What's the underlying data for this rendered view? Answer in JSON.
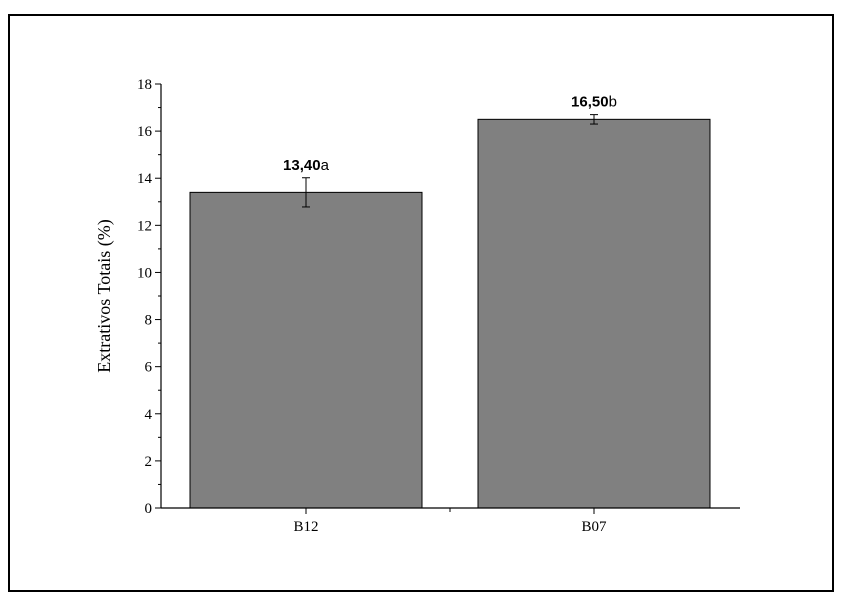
{
  "chart_data": {
    "type": "bar",
    "title": "",
    "xlabel": "",
    "ylabel": "Extrativos Totais (%)",
    "categories": [
      "B12",
      "B07"
    ],
    "values": [
      13.4,
      16.5
    ],
    "errors": [
      0.62,
      0.2
    ],
    "annotations": [
      {
        "value": "13,40",
        "letter": "a"
      },
      {
        "value": "16,50",
        "letter": "b"
      }
    ],
    "ylim": [
      0,
      18
    ],
    "yticks": [
      0,
      2,
      4,
      6,
      8,
      10,
      12,
      14,
      16,
      18
    ],
    "grid": false,
    "bar_color": "#808080"
  }
}
